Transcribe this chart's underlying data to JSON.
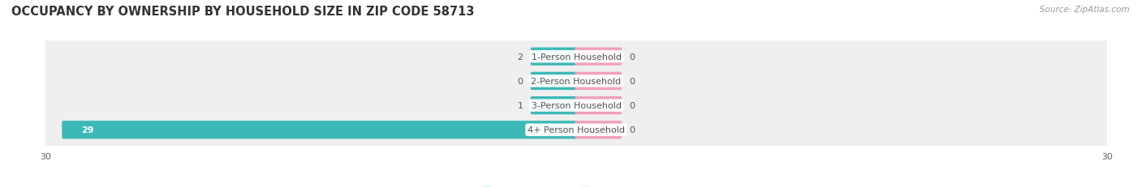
{
  "title": "OCCUPANCY BY OWNERSHIP BY HOUSEHOLD SIZE IN ZIP CODE 58713",
  "source": "Source: ZipAtlas.com",
  "categories": [
    "4+ Person Household",
    "3-Person Household",
    "2-Person Household",
    "1-Person Household"
  ],
  "owner_values": [
    29,
    1,
    0,
    2
  ],
  "renter_values": [
    0,
    0,
    0,
    0
  ],
  "owner_color": "#3db8b8",
  "renter_color": "#f0a0b8",
  "row_bg_color": "#efefef",
  "row_bg_color_alt": "#e8e8e8",
  "xlim_left": -30,
  "xlim_right": 30,
  "x_axis_labels_left": "30",
  "x_axis_labels_right": "30",
  "title_fontsize": 10.5,
  "source_fontsize": 7.5,
  "label_fontsize": 8,
  "value_fontsize": 8,
  "tick_fontsize": 8,
  "legend_fontsize": 8,
  "bar_height": 0.58,
  "stub_size": 2.5,
  "background_color": "#ffffff",
  "value_text_color": "#555555",
  "value_text_color_white": "#ffffff",
  "category_text_color": "#555555"
}
